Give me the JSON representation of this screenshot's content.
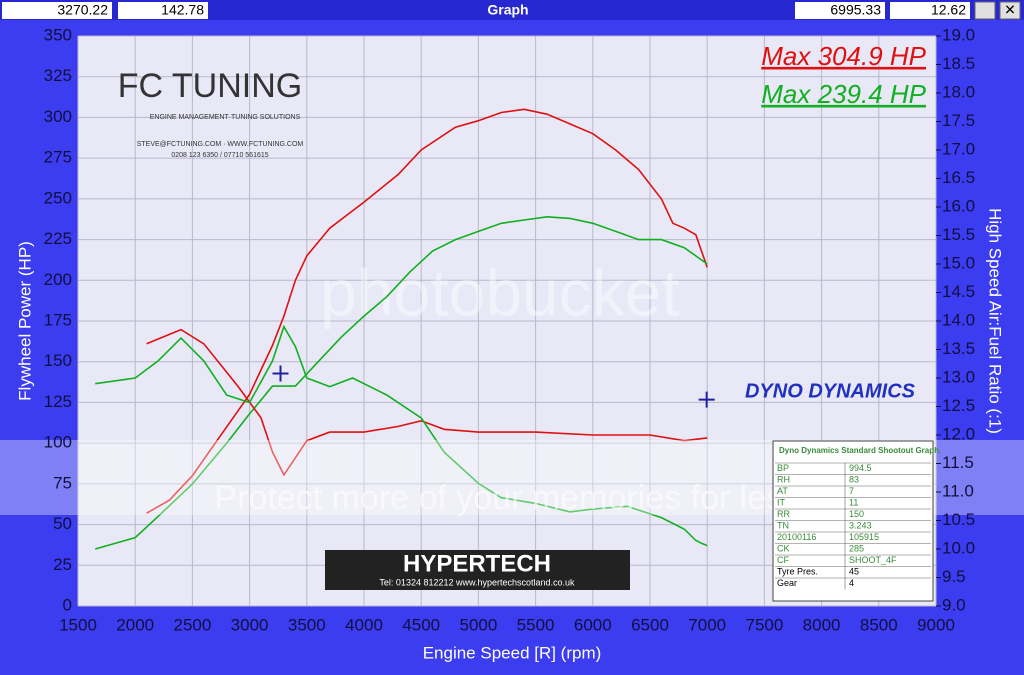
{
  "window": {
    "left_x": 3270.22,
    "left_y": 142.78,
    "title": "Graph",
    "right_x": 6995.33,
    "right_y": 12.62
  },
  "logos": {
    "fc": "FC TUNING",
    "fc_sub": "ENGINE MANAGEMENT·TUNING SOLUTIONS",
    "fc_mail": "STEVE@FCTUNING.COM  ·  WWW.FCTUNING.COM",
    "fc_phone": "0208 123 6350 / 07710 561615",
    "hypertech": "HYPERTECH",
    "hypertech_sub": "Tel: 01324 812212    www.hypertechscotland.co.uk",
    "dyno": "DYNO DYNAMICS",
    "watermark": "photobucket",
    "watermark_sub": "Protect more of your memories for less!"
  },
  "chart_data": {
    "type": "line",
    "xlabel": "Engine Speed [R] (rpm)",
    "ylabel": "Flywheel Power (HP)",
    "y2label": "High Speed Air:Fuel Ratio (:1)",
    "xlim": [
      1500,
      9000
    ],
    "xticks": [
      1500,
      2000,
      2500,
      3000,
      3500,
      4000,
      4500,
      5000,
      5500,
      6000,
      6500,
      7000,
      7500,
      8000,
      8500,
      9000
    ],
    "ylim": [
      0,
      350
    ],
    "yticks": [
      0,
      25,
      50,
      75,
      100,
      125,
      150,
      175,
      200,
      225,
      250,
      275,
      300,
      325,
      350
    ],
    "y2lim": [
      9.0,
      19.0
    ],
    "y2ticks": [
      {
        "value": 9,
        "label": "9.0"
      },
      9.5,
      {
        "value": 10,
        "label": "10.0"
      },
      10.5,
      {
        "value": 11,
        "label": "11.0"
      },
      11.5,
      {
        "value": 12,
        "label": "12.0"
      },
      12.5,
      {
        "value": 13,
        "label": "13.0"
      },
      13.5,
      {
        "value": 14,
        "label": "14.0"
      },
      14.5,
      {
        "value": 15,
        "label": "15.0"
      },
      15.5,
      {
        "value": 16,
        "label": "16.0"
      },
      16.5,
      {
        "value": 17,
        "label": "17.0"
      },
      17.5,
      {
        "value": 18,
        "label": "18.0"
      },
      18.5,
      {
        "value": 19,
        "label": "19.0"
      }
    ],
    "grid": true,
    "annotations": [
      {
        "text": "Max 304.9 HP",
        "color": "#e01010"
      },
      {
        "text": "Max 239.4 HP",
        "color": "#10b020"
      }
    ],
    "series": [
      {
        "color": "#e01010",
        "axis": "y",
        "x": [
          2100,
          2300,
          2500,
          2700,
          2900,
          3000,
          3100,
          3200,
          3300,
          3400,
          3500,
          3700,
          4000,
          4300,
          4500,
          4800,
          5000,
          5200,
          5400,
          5600,
          5800,
          6000,
          6200,
          6400,
          6600,
          6700,
          6800,
          6900,
          7000
        ],
        "values": [
          57,
          65,
          80,
          100,
          120,
          130,
          145,
          160,
          178,
          200,
          215,
          232,
          248,
          265,
          280,
          294,
          298,
          303,
          305,
          302,
          296,
          290,
          280,
          268,
          250,
          235,
          232,
          228,
          208
        ]
      },
      {
        "color": "#10b020",
        "axis": "y",
        "x": [
          1650,
          2000,
          2200,
          2500,
          2800,
          3000,
          3200,
          3400,
          3600,
          3800,
          4000,
          4200,
          4400,
          4600,
          4800,
          5000,
          5200,
          5400,
          5600,
          5800,
          6000,
          6200,
          6400,
          6600,
          6800,
          7000
        ],
        "values": [
          35,
          42,
          55,
          75,
          100,
          118,
          135,
          135,
          150,
          165,
          178,
          190,
          205,
          218,
          225,
          230,
          235,
          237,
          239,
          238,
          235,
          230,
          225,
          225,
          220,
          210
        ]
      },
      {
        "color": "#e01010",
        "axis": "y2",
        "x": [
          2100,
          2400,
          2600,
          2800,
          2900,
          3100,
          3200,
          3300,
          3400,
          3500,
          3700,
          4000,
          4300,
          4500,
          4700,
          5000,
          5500,
          6000,
          6500,
          6800,
          7000
        ],
        "values": [
          13.6,
          13.85,
          13.6,
          13.1,
          12.85,
          12.3,
          11.7,
          11.3,
          11.6,
          11.9,
          12.05,
          12.05,
          12.15,
          12.25,
          12.1,
          12.05,
          12.05,
          12.0,
          12.0,
          11.9,
          11.95
        ]
      },
      {
        "color": "#10b020",
        "axis": "y2",
        "x": [
          1650,
          2000,
          2200,
          2400,
          2600,
          2800,
          3000,
          3200,
          3300,
          3400,
          3500,
          3700,
          3900,
          4200,
          4500,
          4700,
          5000,
          5200,
          5500,
          5800,
          6000,
          6300,
          6600,
          6800,
          6900,
          6950,
          7000
        ],
        "values": [
          12.9,
          13.0,
          13.3,
          13.7,
          13.3,
          12.7,
          12.57,
          13.3,
          13.9,
          13.55,
          13.0,
          12.85,
          13.0,
          12.7,
          12.3,
          11.7,
          11.15,
          10.9,
          10.8,
          10.65,
          10.7,
          10.75,
          10.55,
          10.35,
          10.15,
          10.1,
          10.06
        ]
      }
    ]
  },
  "info_table": {
    "title": "Dyno Dynamics Standard Shootout Graph.",
    "rows": [
      [
        "BP",
        "994.5"
      ],
      [
        "RH",
        "83"
      ],
      [
        "AT",
        "7"
      ],
      [
        "IT",
        "11"
      ],
      [
        "RR",
        "150"
      ],
      [
        "TN",
        "3.243"
      ],
      [
        "20100116",
        "105915"
      ],
      [
        "CK",
        "285"
      ],
      [
        "CF",
        "SHOOT_4F"
      ],
      [
        "Tyre Pres.",
        "45"
      ],
      [
        "Gear",
        "4"
      ]
    ]
  }
}
